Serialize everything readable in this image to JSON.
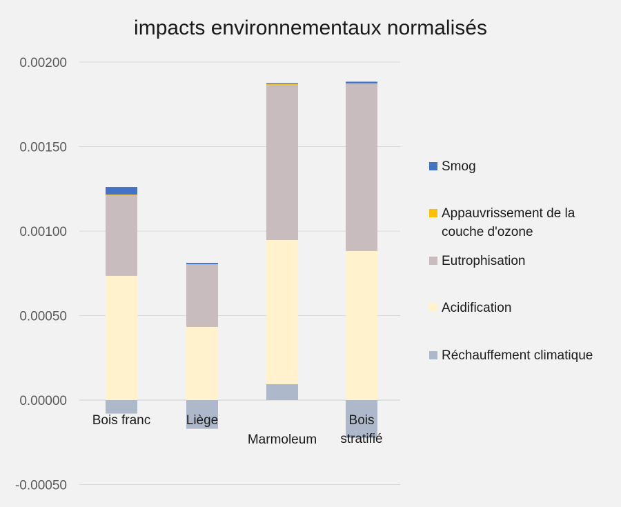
{
  "chart_data": {
    "type": "bar",
    "stacked": true,
    "title": "impacts environnementaux normalisés",
    "xlabel": "",
    "ylabel": "",
    "ylim": [
      -0.0005,
      0.002
    ],
    "yticks": [
      "0.00200",
      "0.00150",
      "0.00100",
      "0.00050",
      "0.00000",
      "-0.00050"
    ],
    "ytick_values": [
      0.002,
      0.0015,
      0.001,
      0.0005,
      0,
      -0.0005
    ],
    "grid": true,
    "legend_position": "right",
    "categories": [
      "Bois franc",
      "Liège",
      "Marmoleum",
      "Bois stratifié"
    ],
    "series": [
      {
        "name": "Réchauffement climatique",
        "color": "#adb9ca",
        "values": [
          -8e-05,
          -0.00017,
          9.4e-05,
          -0.000225
        ]
      },
      {
        "name": "Acidification",
        "color": "#fff2cc",
        "values": [
          0.000735,
          0.000433,
          0.000853,
          0.000882
        ]
      },
      {
        "name": "Eutrophisation",
        "color": "#c9bcbf",
        "values": [
          0.00048,
          0.00037,
          0.000918,
          0.00099
        ]
      },
      {
        "name": "Appauvrissement de la couche d'ozone",
        "color": "#ffc000",
        "values": [
          1e-06,
          1e-06,
          4e-06,
          2e-06
        ]
      },
      {
        "name": "Smog",
        "color": "#4472c4",
        "values": [
          4.5e-05,
          8e-06,
          6e-06,
          1e-05
        ]
      }
    ]
  }
}
